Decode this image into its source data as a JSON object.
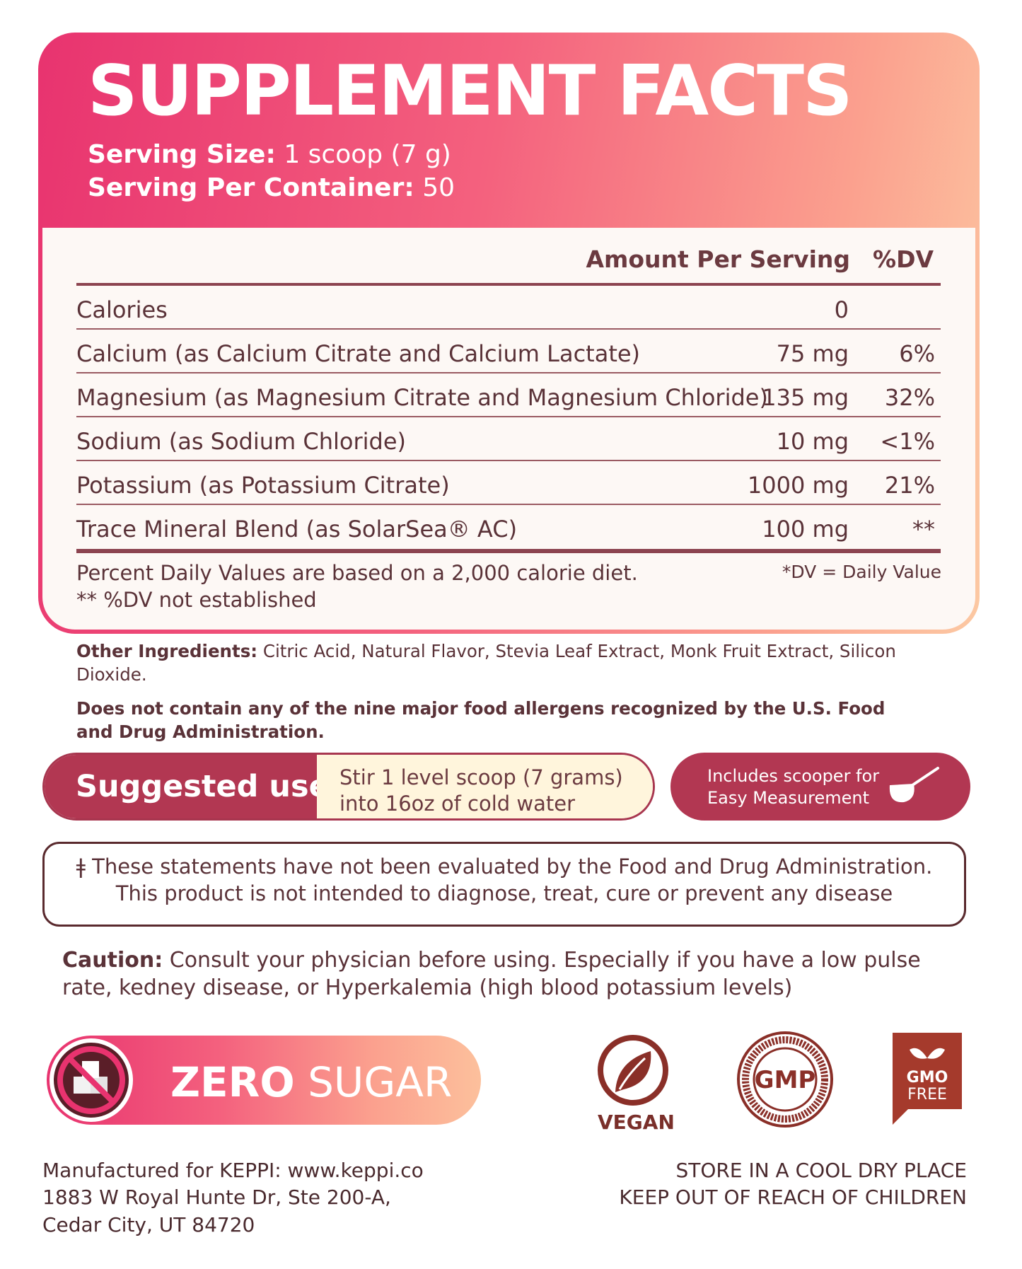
{
  "panel": {
    "title": "SUPPLEMENT FACTS",
    "serving_size_label": "Serving Size:",
    "serving_size_value": " 1 scoop (7 g)",
    "servings_label": "Serving Per Container:",
    "servings_value": " 50"
  },
  "facts": {
    "header_amount": "Amount Per Serving",
    "header_dv": "%DV",
    "rows": [
      {
        "name": "Calories",
        "amount": "0",
        "dv": ""
      },
      {
        "name": "Calcium (as Calcium Citrate and Calcium Lactate)",
        "amount": "75 mg",
        "dv": "6%"
      },
      {
        "name": "Magnesium (as Magnesium Citrate and Magnesium Chloride)",
        "amount": "135 mg",
        "dv": "32%"
      },
      {
        "name": "Sodium (as Sodium Chloride)",
        "amount": "10 mg",
        "dv": "<1%"
      },
      {
        "name": "Potassium (as Potassium Citrate)",
        "amount": "1000 mg",
        "dv": "21%"
      },
      {
        "name": "Trace Mineral Blend (as SolarSea® AC)",
        "amount": "100 mg",
        "dv": "**"
      }
    ],
    "footnote_1": "Percent Daily Values are based on a 2,000 calorie diet.",
    "footnote_2": "** %DV not established",
    "dv_note": "*DV = Daily Value"
  },
  "ingredients": {
    "other_label": "Other Ingredients:",
    "other_text": " Citric Acid, Natural Flavor, Stevia Leaf Extract, Monk Fruit Extract, Silicon Dioxide.",
    "allergen_text": "Does not contain any of the nine major food allergens recognized by the U.S. Food and Drug Administration."
  },
  "suggested": {
    "label": "Suggested use:",
    "line_1": "Stir 1 level scoop (7 grams)",
    "line_2": "into 16oz of cold water",
    "scooper_line_1": "Includes scooper for",
    "scooper_line_2": "Easy Measurement"
  },
  "disclaimer": {
    "line_1": "ǂ These statements have not been evaluated by the Food and Drug Administration.",
    "line_2": "This product is not intended to diagnose, treat, cure or prevent any disease"
  },
  "caution": {
    "label": "Caution:",
    "text": "  Consult your physician before using. Especially if you have a low pulse rate, kedney disease, or Hyperkalemia (high blood potassium levels)"
  },
  "badges": {
    "zero_bold": "ZERO",
    "zero_light": " SUGAR",
    "vegan": "VEGAN",
    "gmp": "GMP",
    "gmo_1": "GMO",
    "gmo_2": "FREE",
    "icons": [
      "no-sugar-icon",
      "vegan-leaf-icon",
      "gmp-seal-icon",
      "gmo-free-icon",
      "scoop-icon"
    ]
  },
  "footer": {
    "mfg_1": "Manufactured for KEPPI: www.keppi.co",
    "mfg_2": "1883 W Royal Hunte Dr, Ste 200-A,",
    "mfg_3": "Cedar City, UT 84720",
    "store_1": "STORE IN A COOL DRY PLACE",
    "store_2": "KEEP OUT OF REACH OF CHILDREN"
  },
  "colors": {
    "pink": "#e8336f",
    "peach": "#fcc9a3",
    "maroon": "#b23752",
    "brown_text": "#5a3238",
    "cream": "#fff5dc"
  }
}
